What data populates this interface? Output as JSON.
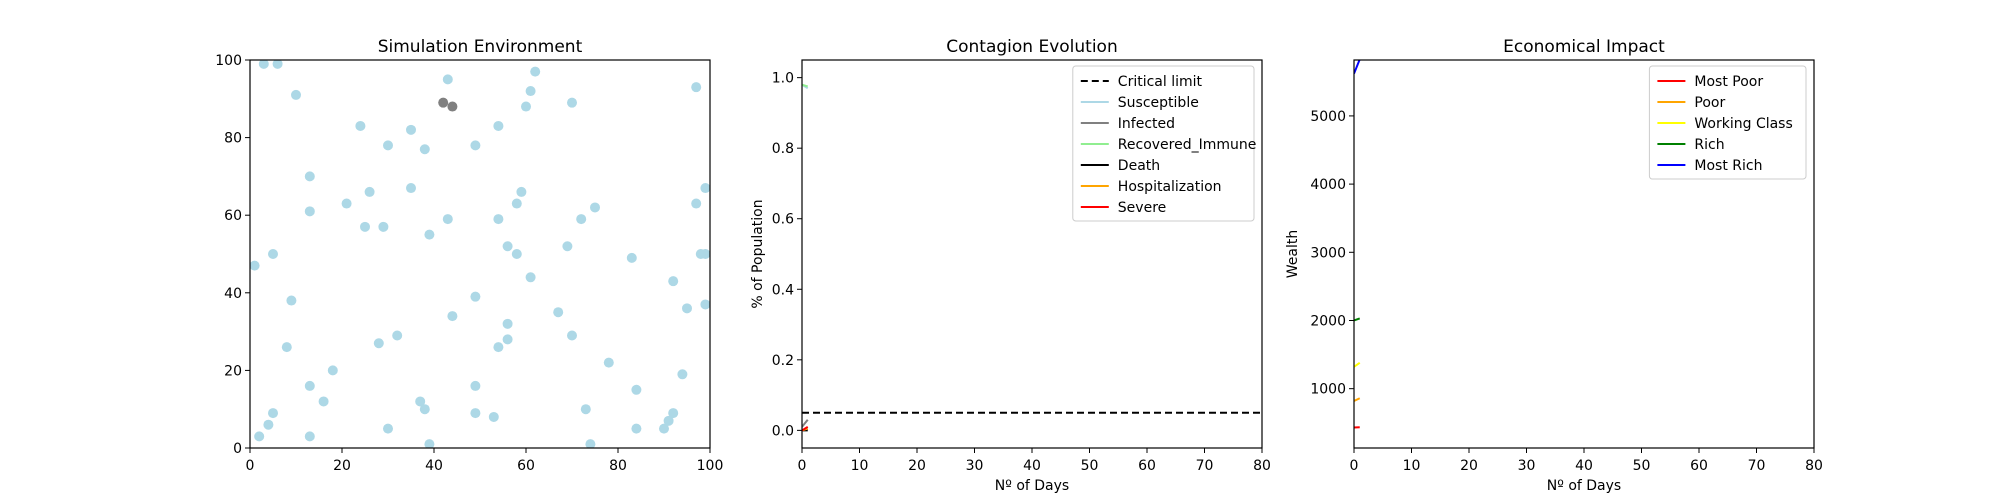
{
  "chart_data": [
    {
      "type": "scatter",
      "title": "Simulation Environment",
      "xlabel": "",
      "ylabel": "",
      "xlim": [
        0,
        100
      ],
      "ylim": [
        0,
        100
      ],
      "xticks": [
        "0",
        "20",
        "40",
        "60",
        "80",
        "100"
      ],
      "yticks": [
        "0",
        "20",
        "40",
        "60",
        "80",
        "100"
      ],
      "grid": false,
      "colors": {
        "susceptible": "#add8e6",
        "infected": "#808080"
      },
      "series": [
        {
          "group": "susceptible",
          "points": [
            [
              3,
              99
            ],
            [
              6,
              99
            ],
            [
              10,
              91
            ],
            [
              24,
              83
            ],
            [
              30,
              78
            ],
            [
              35,
              82
            ],
            [
              38,
              77
            ],
            [
              43,
              95
            ],
            [
              49,
              78
            ],
            [
              54,
              83
            ],
            [
              60,
              88
            ],
            [
              61,
              92
            ],
            [
              62,
              97
            ],
            [
              70,
              89
            ],
            [
              97,
              93
            ],
            [
              13,
              70
            ],
            [
              13,
              61
            ],
            [
              21,
              63
            ],
            [
              26,
              66
            ],
            [
              25,
              57
            ],
            [
              29,
              57
            ],
            [
              35,
              67
            ],
            [
              39,
              55
            ],
            [
              43,
              59
            ],
            [
              54,
              59
            ],
            [
              56,
              52
            ],
            [
              58,
              50
            ],
            [
              58,
              63
            ],
            [
              59,
              66
            ],
            [
              69,
              52
            ],
            [
              72,
              59
            ],
            [
              75,
              62
            ],
            [
              97,
              63
            ],
            [
              99,
              67
            ],
            [
              98,
              50
            ],
            [
              99,
              50
            ],
            [
              1,
              47
            ],
            [
              5,
              50
            ],
            [
              9,
              38
            ],
            [
              8,
              26
            ],
            [
              13,
              16
            ],
            [
              16,
              12
            ],
            [
              18,
              20
            ],
            [
              28,
              27
            ],
            [
              32,
              29
            ],
            [
              37,
              12
            ],
            [
              38,
              10
            ],
            [
              44,
              34
            ],
            [
              49,
              39
            ],
            [
              56,
              32
            ],
            [
              54,
              26
            ],
            [
              56,
              28
            ],
            [
              61,
              44
            ],
            [
              67,
              35
            ],
            [
              70,
              29
            ],
            [
              78,
              22
            ],
            [
              83,
              49
            ],
            [
              92,
              43
            ],
            [
              95,
              36
            ],
            [
              99,
              37
            ],
            [
              94,
              19
            ],
            [
              84,
              15
            ],
            [
              73,
              10
            ],
            [
              91,
              7
            ],
            [
              92,
              9
            ],
            [
              90,
              5
            ],
            [
              84,
              5
            ],
            [
              49,
              16
            ],
            [
              49,
              9
            ],
            [
              53,
              8
            ],
            [
              30,
              5
            ],
            [
              39,
              1
            ],
            [
              74,
              1
            ],
            [
              13,
              3
            ],
            [
              2,
              3
            ],
            [
              4,
              6
            ],
            [
              5,
              9
            ]
          ]
        },
        {
          "group": "infected",
          "points": [
            [
              42,
              89
            ],
            [
              44,
              88
            ]
          ]
        }
      ]
    },
    {
      "type": "line",
      "title": "Contagion Evolution",
      "xlabel": "Nº of Days",
      "ylabel": "% of Population",
      "xlim": [
        0,
        80
      ],
      "ylim": [
        -0.05,
        1.05
      ],
      "xticks": [
        "0",
        "10",
        "20",
        "30",
        "40",
        "50",
        "60",
        "70",
        "80"
      ],
      "yticks": [
        "0.0",
        "0.2",
        "0.4",
        "0.6",
        "0.8",
        "1.0"
      ],
      "grid": false,
      "legend_position": "top-right",
      "series": [
        {
          "name": "Critical limit",
          "color": "#000000",
          "dash": true,
          "x": [
            0,
            80
          ],
          "y": [
            0.05,
            0.05
          ]
        },
        {
          "name": "Susceptible",
          "color": "#add8e6",
          "x": [
            0,
            1
          ],
          "y": [
            0.98,
            0.97
          ]
        },
        {
          "name": "Infected",
          "color": "#808080",
          "x": [
            0,
            1
          ],
          "y": [
            0.01,
            0.03
          ]
        },
        {
          "name": "Recovered_Immune",
          "color": "#90ee90",
          "x": [
            0,
            1
          ],
          "y": [
            0.98,
            0.975
          ]
        },
        {
          "name": "Death",
          "color": "#000000",
          "x": [
            0,
            1
          ],
          "y": [
            0,
            0
          ]
        },
        {
          "name": "Hospitalization",
          "color": "#ffa500",
          "x": [
            0,
            1
          ],
          "y": [
            0,
            0.005
          ]
        },
        {
          "name": "Severe",
          "color": "#ff0000",
          "x": [
            0,
            1
          ],
          "y": [
            0,
            0.01
          ]
        }
      ]
    },
    {
      "type": "line",
      "title": "Economical Impact",
      "xlabel": "Nº of Days",
      "ylabel": "Wealth",
      "xlim": [
        0,
        80
      ],
      "ylim": [
        130,
        5820
      ],
      "xticks": [
        "0",
        "10",
        "20",
        "30",
        "40",
        "50",
        "60",
        "70",
        "80"
      ],
      "yticks": [
        "1000",
        "2000",
        "3000",
        "4000",
        "5000"
      ],
      "ytick_values": [
        1000,
        2000,
        3000,
        4000,
        5000
      ],
      "grid": false,
      "legend_position": "top-right",
      "series": [
        {
          "name": "Most Poor",
          "color": "#ff0000",
          "x": [
            0,
            1
          ],
          "y": [
            430,
            435
          ]
        },
        {
          "name": "Poor",
          "color": "#ffa500",
          "x": [
            0,
            1
          ],
          "y": [
            820,
            860
          ]
        },
        {
          "name": "Working Class",
          "color": "#ffff00",
          "x": [
            0,
            1
          ],
          "y": [
            1320,
            1380
          ]
        },
        {
          "name": "Rich",
          "color": "#008000",
          "x": [
            0,
            1
          ],
          "y": [
            2000,
            2030
          ]
        },
        {
          "name": "Most Rich",
          "color": "#0000ff",
          "x": [
            0,
            1
          ],
          "y": [
            5620,
            5830
          ]
        }
      ]
    }
  ]
}
